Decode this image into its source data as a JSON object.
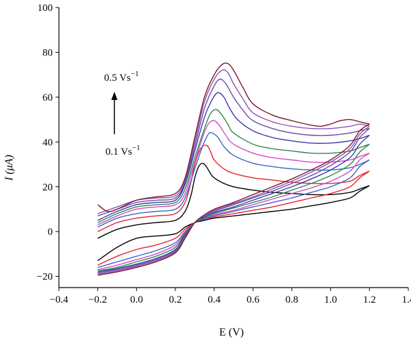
{
  "chart_data": {
    "type": "line",
    "title": "",
    "xlabel": "E (V)",
    "ylabel": "I (μA)",
    "xlim": [
      -0.4,
      1.4
    ],
    "ylim": [
      -25,
      100
    ],
    "xticks": [
      -0.4,
      -0.2,
      0.0,
      0.2,
      0.4,
      0.6,
      0.8,
      1.0,
      1.2,
      1.4
    ],
    "xtick_labels": [
      "−0.4",
      "−0.2",
      "0.0",
      "0.2",
      "0.4",
      "0.6",
      "0.8",
      "1.0",
      "1.2",
      "1.4"
    ],
    "yticks": [
      -20,
      0,
      20,
      40,
      60,
      80,
      100
    ],
    "ytick_labels": [
      "−20",
      "0",
      "20",
      "40",
      "60",
      "80",
      "100"
    ],
    "grid": false,
    "legend": "none",
    "annotations": {
      "top": "0.5 Vs",
      "top_sup": "−1",
      "bottom": "0.1 Vs",
      "bottom_sup": "−1"
    },
    "series": [
      {
        "color": "#000000",
        "anodic": {
          "x": [
            -0.2,
            -0.1,
            0.0,
            0.1,
            0.2,
            0.25,
            0.28,
            0.3,
            0.32,
            0.34,
            0.36,
            0.38,
            0.4,
            0.45,
            0.5,
            0.6,
            0.7,
            0.8,
            0.9,
            1.0,
            1.1,
            1.15,
            1.2
          ],
          "y": [
            -3,
            1,
            3,
            4,
            5,
            9,
            16,
            24,
            29,
            30.5,
            29,
            26,
            24,
            21.5,
            20,
            18.5,
            17.5,
            17,
            16.5,
            16.5,
            17.5,
            19,
            20.5
          ]
        },
        "cathodic": {
          "x": [
            1.2,
            1.15,
            1.1,
            1.0,
            0.9,
            0.8,
            0.7,
            0.6,
            0.5,
            0.4,
            0.35,
            0.3,
            0.25,
            0.2,
            0.1,
            0.0,
            -0.1,
            -0.2
          ],
          "y": [
            20.5,
            18,
            15,
            13,
            11.5,
            10,
            9,
            8,
            7,
            6,
            5,
            4,
            2,
            -1,
            -2,
            -3,
            -7,
            -13
          ]
        }
      },
      {
        "color": "#e8202a",
        "anodic": {
          "x": [
            -0.2,
            -0.1,
            0.0,
            0.1,
            0.2,
            0.25,
            0.28,
            0.3,
            0.33,
            0.36,
            0.38,
            0.4,
            0.45,
            0.5,
            0.6,
            0.7,
            0.8,
            0.9,
            1.0,
            1.1,
            1.15,
            1.2
          ],
          "y": [
            0,
            4,
            6,
            7,
            8,
            13,
            22,
            30,
            37,
            38.5,
            36,
            32,
            28,
            26,
            24,
            23,
            22,
            21.5,
            21.5,
            22.5,
            25,
            27
          ]
        },
        "cathodic": {
          "x": [
            1.2,
            1.15,
            1.1,
            1.0,
            0.9,
            0.8,
            0.7,
            0.6,
            0.5,
            0.4,
            0.35,
            0.3,
            0.25,
            0.2,
            0.1,
            0.0,
            -0.1,
            -0.2
          ],
          "y": [
            27,
            24,
            20,
            17,
            15,
            13,
            11,
            9.5,
            8,
            6.5,
            5.5,
            4,
            1,
            -3,
            -6,
            -8,
            -11,
            -15
          ]
        }
      },
      {
        "color": "#3a64c4",
        "anodic": {
          "x": [
            -0.2,
            -0.1,
            0.0,
            0.1,
            0.2,
            0.25,
            0.3,
            0.34,
            0.37,
            0.39,
            0.42,
            0.45,
            0.5,
            0.6,
            0.7,
            0.8,
            0.9,
            1.0,
            1.1,
            1.15,
            1.2
          ],
          "y": [
            2,
            6,
            8,
            9,
            10,
            15,
            28,
            38,
            43.5,
            44,
            42,
            38,
            34,
            30.5,
            29,
            28,
            27.5,
            27.5,
            28.5,
            30,
            32
          ]
        },
        "cathodic": {
          "x": [
            1.2,
            1.15,
            1.1,
            1.0,
            0.9,
            0.8,
            0.7,
            0.6,
            0.5,
            0.4,
            0.35,
            0.3,
            0.25,
            0.2,
            0.1,
            0.0,
            -0.1,
            -0.2
          ],
          "y": [
            32,
            29,
            24,
            20,
            17.5,
            15,
            13,
            11,
            9,
            7,
            5.5,
            4,
            0,
            -5,
            -8.5,
            -11,
            -13.5,
            -16
          ]
        }
      },
      {
        "color": "#d548c6",
        "anodic": {
          "x": [
            -0.2,
            -0.1,
            0.0,
            0.1,
            0.2,
            0.25,
            0.3,
            0.34,
            0.37,
            0.4,
            0.43,
            0.46,
            0.5,
            0.6,
            0.7,
            0.8,
            0.9,
            1.0,
            1.1,
            1.15,
            1.2
          ],
          "y": [
            3,
            7,
            10,
            11,
            12,
            17,
            31,
            42,
            48,
            49.5,
            47,
            43,
            39,
            35,
            33,
            32,
            31,
            31,
            32,
            33.5,
            35
          ]
        },
        "cathodic": {
          "x": [
            1.2,
            1.15,
            1.1,
            1.0,
            0.9,
            0.8,
            0.7,
            0.6,
            0.5,
            0.4,
            0.35,
            0.3,
            0.25,
            0.2,
            0.1,
            0.0,
            -0.1,
            -0.2
          ],
          "y": [
            35,
            32,
            27,
            22.5,
            19.5,
            17,
            14.5,
            12,
            9.5,
            7.5,
            6,
            4,
            -0.5,
            -6,
            -10,
            -12.5,
            -15,
            -17
          ]
        }
      },
      {
        "color": "#2a8a4a",
        "anodic": {
          "x": [
            -0.2,
            -0.1,
            0.0,
            0.1,
            0.2,
            0.25,
            0.3,
            0.35,
            0.38,
            0.41,
            0.44,
            0.47,
            0.5,
            0.6,
            0.7,
            0.8,
            0.9,
            1.0,
            1.1,
            1.15,
            1.2
          ],
          "y": [
            4,
            8,
            11,
            12,
            13,
            19,
            33,
            46,
            52.5,
            54.5,
            52,
            48,
            44,
            39,
            37,
            36,
            35,
            35,
            36,
            37.5,
            39
          ]
        },
        "cathodic": {
          "x": [
            1.2,
            1.15,
            1.1,
            1.0,
            0.9,
            0.8,
            0.7,
            0.6,
            0.5,
            0.4,
            0.35,
            0.3,
            0.25,
            0.2,
            0.1,
            0.0,
            -0.1,
            -0.2
          ],
          "y": [
            39,
            35.5,
            30,
            25,
            21.5,
            18.5,
            15.5,
            13,
            10.5,
            8,
            6,
            4,
            -1,
            -7,
            -11,
            -13.5,
            -16,
            -17.5
          ]
        }
      },
      {
        "color": "#3a3aa8",
        "anodic": {
          "x": [
            -0.2,
            -0.1,
            0.0,
            0.1,
            0.2,
            0.25,
            0.3,
            0.35,
            0.39,
            0.42,
            0.45,
            0.48,
            0.52,
            0.6,
            0.7,
            0.8,
            0.9,
            1.0,
            1.1,
            1.15,
            1.2
          ],
          "y": [
            5,
            9,
            12,
            13,
            14,
            21,
            36,
            51,
            59,
            62,
            60,
            55,
            50,
            45,
            42,
            40.5,
            39.5,
            39.5,
            40.5,
            41.5,
            43
          ]
        },
        "cathodic": {
          "x": [
            1.2,
            1.15,
            1.1,
            1.0,
            0.9,
            0.8,
            0.7,
            0.6,
            0.5,
            0.4,
            0.35,
            0.3,
            0.25,
            0.2,
            0.1,
            0.0,
            -0.1,
            -0.2
          ],
          "y": [
            43,
            39,
            33,
            27.5,
            23.5,
            20,
            17,
            14,
            11,
            8.5,
            6.5,
            4,
            -1.5,
            -8,
            -12,
            -14.5,
            -16.5,
            -18
          ]
        }
      },
      {
        "color": "#6a4aa8",
        "anodic": {
          "x": [
            -0.2,
            -0.1,
            0.0,
            0.1,
            0.2,
            0.25,
            0.3,
            0.35,
            0.4,
            0.43,
            0.46,
            0.5,
            0.55,
            0.6,
            0.7,
            0.8,
            0.9,
            1.0,
            1.1,
            1.15,
            1.2
          ],
          "y": [
            7,
            10,
            13,
            14,
            15,
            22,
            38,
            55,
            65,
            68,
            66,
            60,
            54,
            49.5,
            46,
            44,
            43,
            43,
            44,
            45,
            46
          ]
        },
        "cathodic": {
          "x": [
            1.2,
            1.15,
            1.1,
            1.0,
            0.9,
            0.8,
            0.7,
            0.6,
            0.5,
            0.4,
            0.35,
            0.3,
            0.25,
            0.2,
            0.1,
            0.0,
            -0.1,
            -0.2
          ],
          "y": [
            46,
            42,
            35.5,
            29.5,
            25,
            21.5,
            18,
            15,
            12,
            9,
            7,
            4,
            -2,
            -8.5,
            -12.5,
            -15,
            -17,
            -18.5
          ]
        }
      },
      {
        "color": "#8a54b4",
        "anodic": {
          "x": [
            -0.2,
            -0.1,
            0.0,
            0.1,
            0.2,
            0.25,
            0.3,
            0.35,
            0.4,
            0.44,
            0.47,
            0.5,
            0.55,
            0.6,
            0.7,
            0.8,
            0.9,
            1.0,
            1.1,
            1.15,
            1.2
          ],
          "y": [
            8,
            11,
            14,
            15,
            16,
            23,
            40,
            58,
            68,
            72,
            71,
            66,
            59,
            53,
            49,
            47,
            46,
            46,
            47,
            48,
            47
          ]
        },
        "cathodic": {
          "x": [
            1.2,
            1.15,
            1.1,
            1.0,
            0.9,
            0.8,
            0.7,
            0.6,
            0.5,
            0.4,
            0.35,
            0.3,
            0.25,
            0.2,
            0.1,
            0.0,
            -0.1,
            -0.2
          ],
          "y": [
            47,
            43.5,
            37,
            31,
            26.5,
            22.5,
            19,
            15.5,
            12.5,
            9.5,
            7,
            4,
            -2.5,
            -9,
            -13,
            -15.5,
            -17.5,
            -19
          ]
        }
      },
      {
        "color": "#7a1822",
        "anodic": {
          "x": [
            -0.2,
            -0.15,
            -0.1,
            0.0,
            0.1,
            0.2,
            0.25,
            0.3,
            0.35,
            0.4,
            0.44,
            0.47,
            0.5,
            0.55,
            0.6,
            0.7,
            0.8,
            0.9,
            0.95,
            1.0,
            1.05,
            1.1,
            1.15,
            1.2
          ],
          "y": [
            12,
            9,
            10,
            14,
            15.5,
            17,
            24,
            42,
            60,
            70,
            74.5,
            75,
            72,
            64,
            57,
            52,
            49.5,
            47.5,
            47,
            48,
            49.5,
            50,
            49,
            48
          ]
        },
        "cathodic": {
          "x": [
            1.2,
            1.15,
            1.1,
            1.0,
            0.9,
            0.8,
            0.7,
            0.6,
            0.5,
            0.4,
            0.35,
            0.3,
            0.25,
            0.2,
            0.1,
            0.0,
            -0.1,
            -0.2
          ],
          "y": [
            48,
            45,
            38.5,
            32,
            27.5,
            23.5,
            20,
            16.5,
            13,
            10,
            7.5,
            4,
            -3,
            -9.5,
            -13.5,
            -16,
            -18,
            -19.5
          ]
        }
      }
    ]
  }
}
